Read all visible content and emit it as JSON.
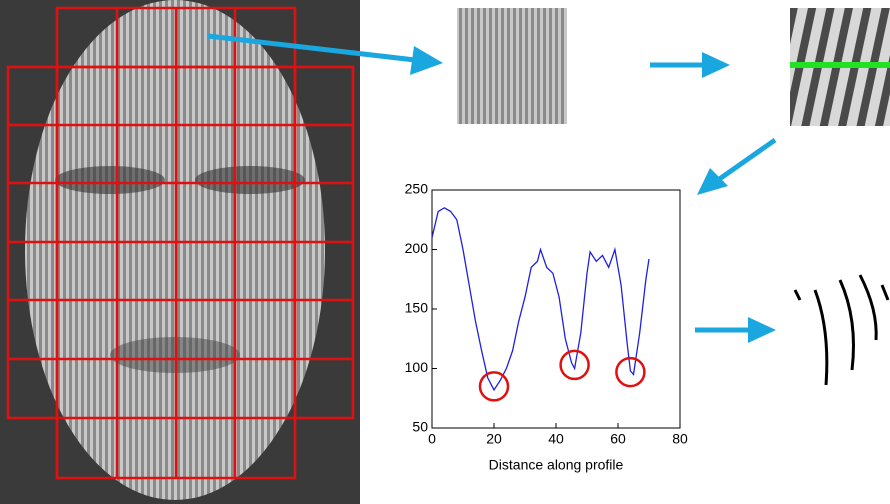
{
  "chart_data": {
    "type": "line",
    "xlabel": "Distance along profile",
    "xlim": [
      0,
      80
    ],
    "xticks": [
      0,
      20,
      40,
      60,
      80
    ],
    "ylim": [
      50,
      250
    ],
    "yticks": [
      50,
      100,
      150,
      200,
      250
    ],
    "x": [
      0,
      2,
      4,
      6,
      8,
      10,
      12,
      14,
      16,
      18,
      20,
      22,
      24,
      26,
      28,
      30,
      32,
      34,
      35,
      37,
      39,
      41,
      43,
      45,
      46,
      48,
      50,
      51,
      53,
      55,
      57,
      59,
      61,
      63,
      64,
      65,
      67,
      69,
      70
    ],
    "series": [
      {
        "color": "#2020e0",
        "values": [
          210,
          232,
          235,
          232,
          225,
          200,
          170,
          140,
          115,
          92,
          82,
          90,
          100,
          115,
          140,
          160,
          185,
          190,
          200,
          185,
          180,
          160,
          125,
          105,
          100,
          130,
          180,
          198,
          190,
          195,
          185,
          200,
          170,
          120,
          98,
          95,
          130,
          175,
          192
        ]
      }
    ],
    "highlights": {
      "color": "#e01010",
      "x": [
        20,
        46,
        64
      ],
      "y": [
        85,
        103,
        97
      ]
    }
  }
}
